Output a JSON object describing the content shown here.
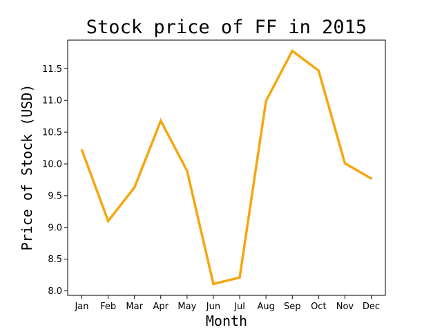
{
  "chart_data": {
    "type": "line",
    "title": "Stock price of FF in 2015",
    "xlabel": "Month",
    "ylabel": "Price of Stock (USD)",
    "categories": [
      "Jan",
      "Feb",
      "Mar",
      "Apr",
      "May",
      "Jun",
      "Jul",
      "Aug",
      "Sep",
      "Oct",
      "Nov",
      "Dec"
    ],
    "series": [
      {
        "values": [
          10.22,
          9.1,
          9.63,
          10.68,
          9.89,
          8.11,
          8.21,
          10.99,
          11.78,
          11.47,
          10.01,
          9.77
        ],
        "color": "#f5a70e"
      }
    ],
    "yticks": [
      8.0,
      8.5,
      9.0,
      9.5,
      10.0,
      10.5,
      11.0,
      11.5
    ],
    "ytick_labels": [
      "8.0",
      "8.5",
      "9.0",
      "9.5",
      "10.0",
      "10.5",
      "11.0",
      "11.5"
    ],
    "ylim": [
      7.93,
      11.95
    ],
    "grid": false
  }
}
